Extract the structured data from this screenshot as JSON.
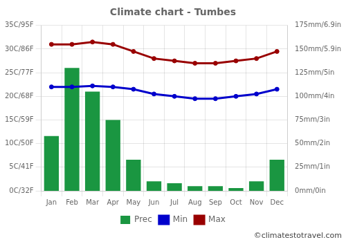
{
  "chart_data": {
    "type": "bar",
    "title": "Climate chart - Tumbes",
    "categories": [
      "Jan",
      "Feb",
      "Mar",
      "Apr",
      "May",
      "Jun",
      "Jul",
      "Aug",
      "Sep",
      "Oct",
      "Nov",
      "Dec"
    ],
    "series": [
      {
        "name": "Prec",
        "type": "bar",
        "axis": "y2",
        "color": "#1a9641",
        "values": [
          58,
          130,
          105,
          75,
          33,
          10,
          8,
          5,
          5,
          3,
          10,
          33
        ]
      },
      {
        "name": "Min",
        "type": "line",
        "color": "#0000cc",
        "marker": "circle",
        "line_style": "solid",
        "values": [
          22,
          22,
          22.2,
          22,
          21.5,
          20.5,
          20,
          19.5,
          19.5,
          20,
          20.5,
          21.5
        ]
      },
      {
        "name": "Max",
        "type": "line",
        "color": "#990000",
        "marker": "circle",
        "line_style": "solid",
        "values": [
          31,
          31,
          31.5,
          31,
          29.5,
          28,
          27.5,
          27,
          27,
          27.5,
          28,
          29.5
        ]
      }
    ],
    "ylim": [
      0,
      35
    ],
    "yticks": [
      {
        "value": 0,
        "label": "0C/32F"
      },
      {
        "value": 5,
        "label": "5C/41F"
      },
      {
        "value": 10,
        "label": "10C/50F"
      },
      {
        "value": 15,
        "label": "15C/59F"
      },
      {
        "value": 20,
        "label": "20C/68F"
      },
      {
        "value": 25,
        "label": "25C/77F"
      },
      {
        "value": 30,
        "label": "30C/86F"
      },
      {
        "value": 35,
        "label": "35C/95F"
      }
    ],
    "y2lim": [
      0,
      175
    ],
    "y2ticks": [
      {
        "value": 0,
        "label": "0mm/0in"
      },
      {
        "value": 25,
        "label": "25mm/1in"
      },
      {
        "value": 50,
        "label": "50mm/2in"
      },
      {
        "value": 75,
        "label": "75mm/3in"
      },
      {
        "value": 100,
        "label": "100mm/4in"
      },
      {
        "value": 125,
        "label": "125mm/5in"
      },
      {
        "value": 150,
        "label": "150mm/5.9in"
      },
      {
        "value": 175,
        "label": "175mm/6.9in"
      }
    ],
    "grid": true,
    "legend": "bottom",
    "annotation": "©climatestotravel.com"
  }
}
